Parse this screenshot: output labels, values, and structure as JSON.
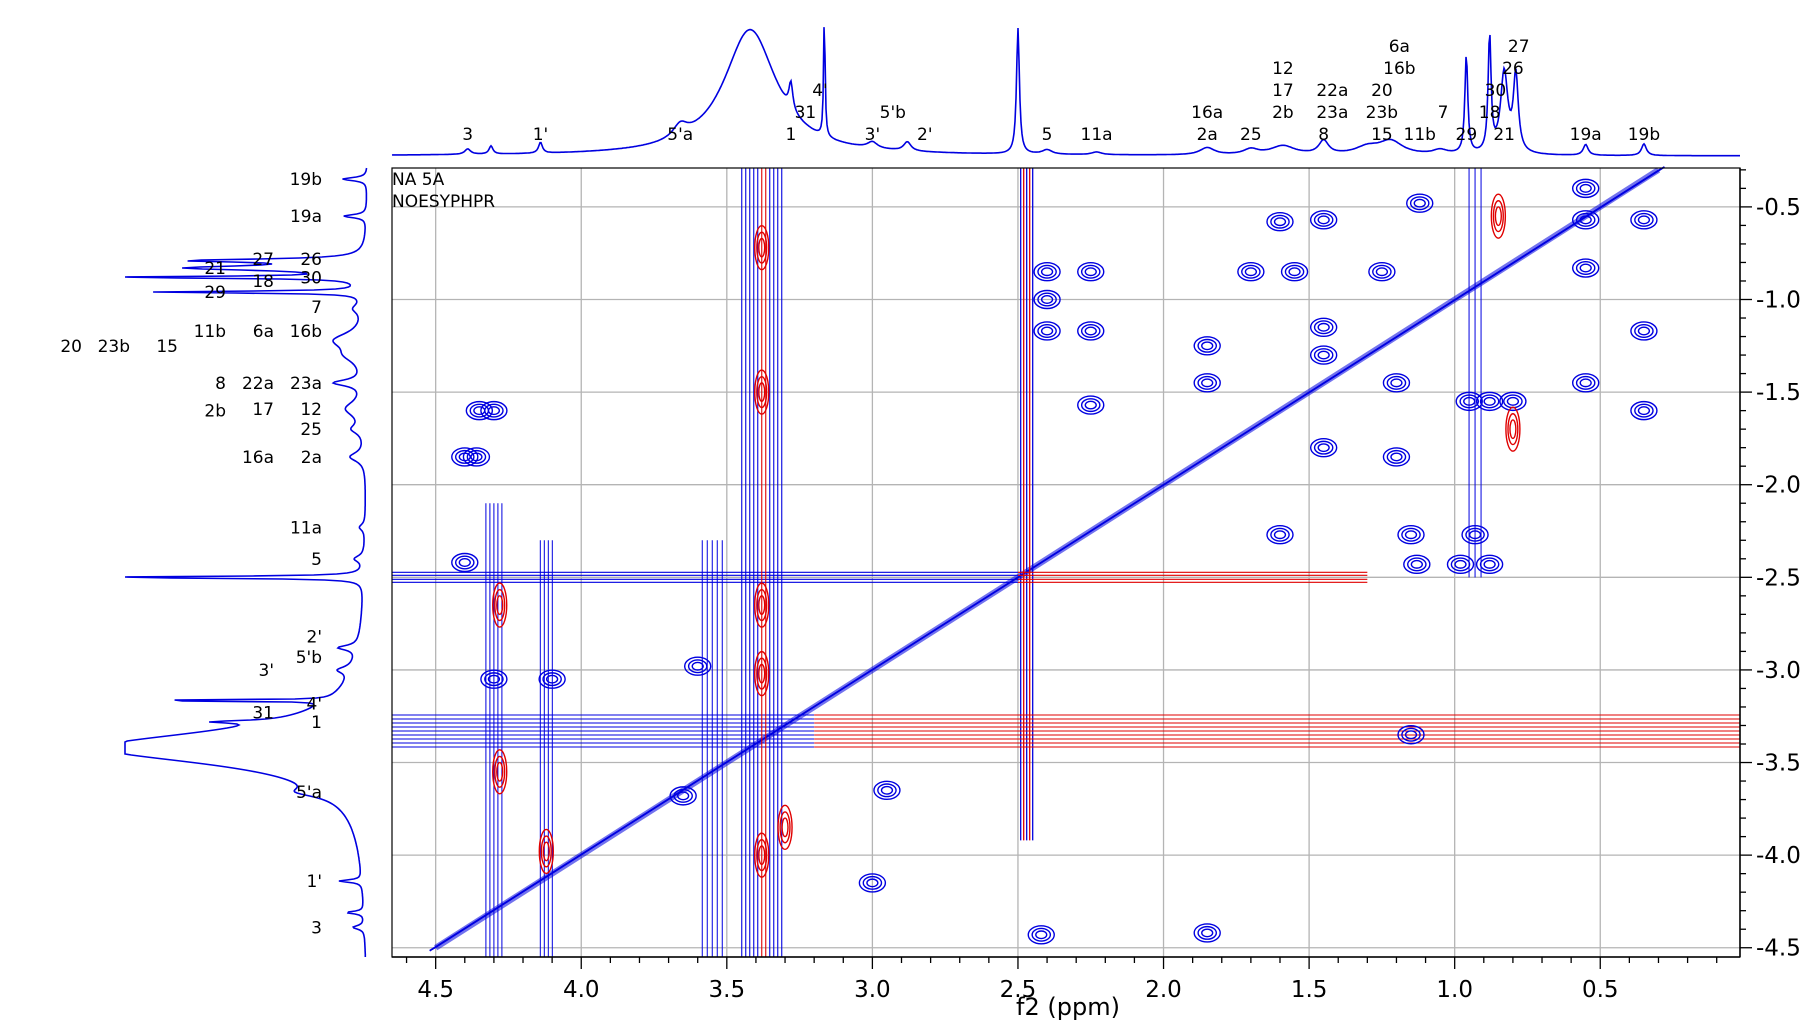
{
  "chart_data": {
    "type": "nmr-2d-contour",
    "experiment_labels": [
      "NA 5A",
      "NOESYPHPR"
    ],
    "xlabel": "f2 (ppm)",
    "ylabel": "",
    "xlim": [
      4.65,
      0.02
    ],
    "ylim": [
      4.55,
      0.29
    ],
    "x_ticks": [
      4.5,
      4.0,
      3.5,
      3.0,
      2.5,
      2.0,
      1.5,
      1.0,
      0.5
    ],
    "x_tick_labels": [
      "4.5",
      "4.0",
      "3.5",
      "3.0",
      "2.5",
      "2.0",
      "1.5",
      "1.0",
      "0.5"
    ],
    "y_ticks": [
      0.5,
      1.0,
      1.5,
      2.0,
      2.5,
      3.0,
      3.5,
      4.0,
      4.5
    ],
    "y_tick_labels": [
      "0.5",
      "1.0",
      "1.5",
      "2.0",
      "2.5",
      "3.0",
      "3.5",
      "4.0",
      "4.5"
    ],
    "grid": true,
    "colors": {
      "positive": "#0000e0",
      "negative": "#e00000",
      "grid": "#b4b4b4",
      "axis": "#000000"
    },
    "top_peaks": [
      {
        "label": "3",
        "ppm": 4.39
      },
      {
        "label": "1'",
        "ppm": 4.14
      },
      {
        "label": "5'a",
        "ppm": 3.66
      },
      {
        "label": "1",
        "ppm": 3.28
      },
      {
        "label": "31",
        "ppm": 3.23
      },
      {
        "label": "4'",
        "ppm": 3.18
      },
      {
        "label": "3'",
        "ppm": 3.0
      },
      {
        "label": "5'b",
        "ppm": 2.93
      },
      {
        "label": "2'",
        "ppm": 2.82
      },
      {
        "label": "5",
        "ppm": 2.4
      },
      {
        "label": "11a",
        "ppm": 2.23
      },
      {
        "label": "2a",
        "ppm": 1.85
      },
      {
        "label": "16a",
        "ppm": 1.85
      },
      {
        "label": "25",
        "ppm": 1.7
      },
      {
        "label": "2b",
        "ppm": 1.59
      },
      {
        "label": "17",
        "ppm": 1.59
      },
      {
        "label": "12",
        "ppm": 1.59
      },
      {
        "label": "8",
        "ppm": 1.45
      },
      {
        "label": "23a",
        "ppm": 1.42
      },
      {
        "label": "22a",
        "ppm": 1.42
      },
      {
        "label": "15",
        "ppm": 1.25
      },
      {
        "label": "23b",
        "ppm": 1.25
      },
      {
        "label": "20",
        "ppm": 1.25
      },
      {
        "label": "16b",
        "ppm": 1.19
      },
      {
        "label": "6a",
        "ppm": 1.19
      },
      {
        "label": "11b",
        "ppm": 1.12
      },
      {
        "label": "7",
        "ppm": 1.04
      },
      {
        "label": "29",
        "ppm": 0.96
      },
      {
        "label": "18",
        "ppm": 0.88
      },
      {
        "label": "30",
        "ppm": 0.86
      },
      {
        "label": "21",
        "ppm": 0.83
      },
      {
        "label": "26",
        "ppm": 0.8
      },
      {
        "label": "27",
        "ppm": 0.78
      },
      {
        "label": "19a",
        "ppm": 0.55
      },
      {
        "label": "19b",
        "ppm": 0.35
      }
    ],
    "left_peaks": [
      {
        "label": "19b",
        "ppm": 0.35
      },
      {
        "label": "19a",
        "ppm": 0.55
      },
      {
        "label": "26",
        "ppm": 0.78
      },
      {
        "label": "27",
        "ppm": 0.78
      },
      {
        "label": "21",
        "ppm": 0.83
      },
      {
        "label": "30",
        "ppm": 0.88
      },
      {
        "label": "18",
        "ppm": 0.9
      },
      {
        "label": "29",
        "ppm": 0.96
      },
      {
        "label": "7",
        "ppm": 1.04
      },
      {
        "label": "16b",
        "ppm": 1.17
      },
      {
        "label": "6a",
        "ppm": 1.17
      },
      {
        "label": "11b",
        "ppm": 1.17
      },
      {
        "label": "15",
        "ppm": 1.25
      },
      {
        "label": "23b",
        "ppm": 1.25
      },
      {
        "label": "20",
        "ppm": 1.25
      },
      {
        "label": "23a",
        "ppm": 1.45
      },
      {
        "label": "22a",
        "ppm": 1.45
      },
      {
        "label": "8",
        "ppm": 1.45
      },
      {
        "label": "12",
        "ppm": 1.59
      },
      {
        "label": "17",
        "ppm": 1.59
      },
      {
        "label": "2b",
        "ppm": 1.6
      },
      {
        "label": "25",
        "ppm": 1.7
      },
      {
        "label": "2a",
        "ppm": 1.85
      },
      {
        "label": "16a",
        "ppm": 1.85
      },
      {
        "label": "11a",
        "ppm": 2.23
      },
      {
        "label": "5",
        "ppm": 2.4
      },
      {
        "label": "2'",
        "ppm": 2.82
      },
      {
        "label": "5'b",
        "ppm": 2.93
      },
      {
        "label": "3'",
        "ppm": 3.0
      },
      {
        "label": "4'",
        "ppm": 3.18
      },
      {
        "label": "31",
        "ppm": 3.23
      },
      {
        "label": "1",
        "ppm": 3.28
      },
      {
        "label": "5'a",
        "ppm": 3.66
      },
      {
        "label": "1'",
        "ppm": 4.14
      },
      {
        "label": "3",
        "ppm": 4.39
      }
    ],
    "cross_peaks": [
      {
        "x": 4.4,
        "y": 2.42,
        "sign": "positive"
      },
      {
        "x": 4.3,
        "y": 3.05,
        "sign": "positive"
      },
      {
        "x": 4.1,
        "y": 3.05,
        "sign": "positive"
      },
      {
        "x": 4.4,
        "y": 1.85,
        "sign": "positive"
      },
      {
        "x": 4.36,
        "y": 1.85,
        "sign": "positive"
      },
      {
        "x": 4.35,
        "y": 1.6,
        "sign": "positive"
      },
      {
        "x": 4.3,
        "y": 1.6,
        "sign": "positive"
      },
      {
        "x": 3.65,
        "y": 3.68,
        "sign": "positive"
      },
      {
        "x": 3.6,
        "y": 2.98,
        "sign": "positive"
      },
      {
        "x": 3.0,
        "y": 4.15,
        "sign": "positive"
      },
      {
        "x": 2.95,
        "y": 3.65,
        "sign": "positive"
      },
      {
        "x": 2.42,
        "y": 4.43,
        "sign": "positive"
      },
      {
        "x": 2.25,
        "y": 0.85,
        "sign": "positive"
      },
      {
        "x": 2.25,
        "y": 1.17,
        "sign": "positive"
      },
      {
        "x": 2.25,
        "y": 1.57,
        "sign": "positive"
      },
      {
        "x": 2.4,
        "y": 0.85,
        "sign": "positive"
      },
      {
        "x": 2.4,
        "y": 1.0,
        "sign": "positive"
      },
      {
        "x": 2.4,
        "y": 1.17,
        "sign": "positive"
      },
      {
        "x": 1.85,
        "y": 1.25,
        "sign": "positive"
      },
      {
        "x": 1.85,
        "y": 1.45,
        "sign": "positive"
      },
      {
        "x": 1.85,
        "y": 4.42,
        "sign": "positive"
      },
      {
        "x": 1.7,
        "y": 0.85,
        "sign": "positive"
      },
      {
        "x": 1.6,
        "y": 2.27,
        "sign": "positive"
      },
      {
        "x": 1.6,
        "y": 0.58,
        "sign": "positive"
      },
      {
        "x": 1.55,
        "y": 0.85,
        "sign": "positive"
      },
      {
        "x": 1.45,
        "y": 0.57,
        "sign": "positive"
      },
      {
        "x": 1.45,
        "y": 1.15,
        "sign": "positive"
      },
      {
        "x": 1.45,
        "y": 1.3,
        "sign": "positive"
      },
      {
        "x": 1.45,
        "y": 1.8,
        "sign": "positive"
      },
      {
        "x": 1.25,
        "y": 0.85,
        "sign": "positive"
      },
      {
        "x": 1.2,
        "y": 1.85,
        "sign": "positive"
      },
      {
        "x": 1.2,
        "y": 1.45,
        "sign": "positive"
      },
      {
        "x": 1.15,
        "y": 2.27,
        "sign": "positive"
      },
      {
        "x": 1.15,
        "y": 3.35,
        "sign": "positive"
      },
      {
        "x": 1.12,
        "y": 0.48,
        "sign": "positive"
      },
      {
        "x": 1.13,
        "y": 2.43,
        "sign": "positive"
      },
      {
        "x": 0.98,
        "y": 2.43,
        "sign": "positive"
      },
      {
        "x": 0.93,
        "y": 2.27,
        "sign": "positive"
      },
      {
        "x": 0.88,
        "y": 2.43,
        "sign": "positive"
      },
      {
        "x": 0.88,
        "y": 1.55,
        "sign": "positive"
      },
      {
        "x": 0.95,
        "y": 1.55,
        "sign": "positive"
      },
      {
        "x": 0.8,
        "y": 1.55,
        "sign": "positive"
      },
      {
        "x": 0.55,
        "y": 0.4,
        "sign": "positive"
      },
      {
        "x": 0.55,
        "y": 0.57,
        "sign": "positive"
      },
      {
        "x": 0.55,
        "y": 1.45,
        "sign": "positive"
      },
      {
        "x": 0.35,
        "y": 0.57,
        "sign": "positive"
      },
      {
        "x": 0.35,
        "y": 1.6,
        "sign": "positive"
      },
      {
        "x": 0.35,
        "y": 1.17,
        "sign": "positive"
      },
      {
        "x": 0.55,
        "y": 0.83,
        "sign": "positive"
      },
      {
        "x": 3.3,
        "y": 3.85,
        "sign": "negative"
      },
      {
        "x": 3.38,
        "y": 0.72,
        "sign": "negative"
      },
      {
        "x": 3.38,
        "y": 1.5,
        "sign": "negative"
      },
      {
        "x": 3.38,
        "y": 2.65,
        "sign": "negative"
      },
      {
        "x": 3.38,
        "y": 3.02,
        "sign": "negative"
      },
      {
        "x": 3.38,
        "y": 4.0,
        "sign": "negative"
      },
      {
        "x": 4.28,
        "y": 2.65,
        "sign": "negative"
      },
      {
        "x": 4.28,
        "y": 3.55,
        "sign": "negative"
      },
      {
        "x": 4.12,
        "y": 3.98,
        "sign": "negative"
      },
      {
        "x": 0.8,
        "y": 1.7,
        "sign": "negative"
      },
      {
        "x": 0.85,
        "y": 0.55,
        "sign": "negative"
      }
    ]
  }
}
